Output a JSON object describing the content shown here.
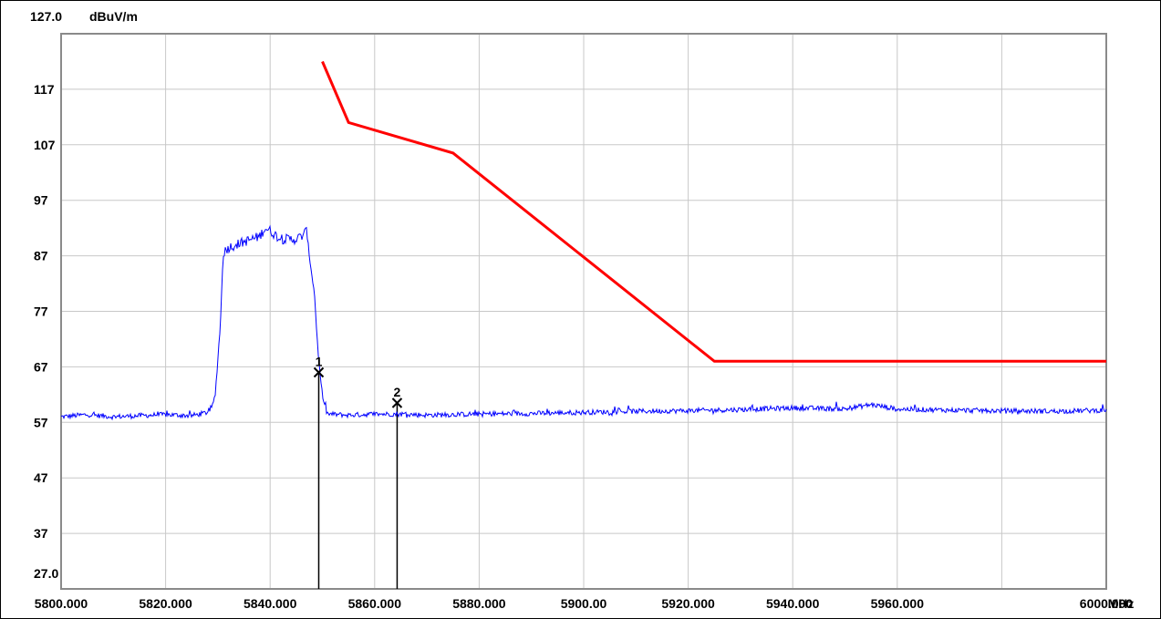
{
  "chart_data": {
    "type": "line",
    "y_unit": "dBuV/m",
    "x_unit": "MHz",
    "y_top_label": "127.0",
    "y_bottom_label": "27.0",
    "ylim": [
      27.0,
      127.0
    ],
    "xlim": [
      5800.0,
      6000.0
    ],
    "grid": true,
    "y_ticks": [
      117,
      107,
      97,
      87,
      77,
      67,
      57,
      47,
      37
    ],
    "x_tick_labels": [
      {
        "value": 5800,
        "label": "5800.000"
      },
      {
        "value": 5820,
        "label": "5820.000"
      },
      {
        "value": 5840,
        "label": "5840.000"
      },
      {
        "value": 5860,
        "label": "5860.000"
      },
      {
        "value": 5880,
        "label": "5880.000"
      },
      {
        "value": 5900,
        "label": "5900.00"
      },
      {
        "value": 5920,
        "label": "5920.000"
      },
      {
        "value": 5940,
        "label": "5940.000"
      },
      {
        "value": 5960,
        "label": "5960.000"
      },
      {
        "value": 6000,
        "label": "6000.000"
      }
    ],
    "limit_line": {
      "color": "#ff0000",
      "x": [
        5850.0,
        5855.0,
        5875.0,
        5925.0,
        6000.0
      ],
      "y": [
        122.0,
        111.0,
        105.5,
        68.0,
        68.0
      ]
    },
    "trace": {
      "color": "#0000ff",
      "x": [
        5800,
        5805,
        5810,
        5815,
        5820,
        5825,
        5828,
        5829,
        5829.5,
        5830.5,
        5831,
        5832,
        5835,
        5838,
        5839,
        5840,
        5842,
        5845,
        5846,
        5847,
        5847.5,
        5848.5,
        5849,
        5849.5,
        5850,
        5850.5,
        5851,
        5855,
        5860,
        5865,
        5870,
        5880,
        5890,
        5900,
        5910,
        5920,
        5930,
        5940,
        5950,
        5955,
        5960,
        5970,
        5980,
        5990,
        6000
      ],
      "y": [
        58,
        58.4,
        58,
        58.2,
        58.4,
        58.2,
        58.8,
        60,
        62,
        75,
        87.5,
        88.5,
        89.5,
        90.5,
        92,
        91.5,
        90,
        90,
        90.5,
        91.5,
        87,
        80,
        72,
        66,
        62,
        59.5,
        58.5,
        58.3,
        58.5,
        58.5,
        58.3,
        58.5,
        58.6,
        58.8,
        59.0,
        59.1,
        59.3,
        59.6,
        59.4,
        60.2,
        59.4,
        59.2,
        59.1,
        59.0,
        59.2
      ]
    },
    "markers": [
      {
        "label": "1",
        "x": 5849.3,
        "y": 66.0
      },
      {
        "label": "2",
        "x": 5864.3,
        "y": 60.5
      }
    ]
  }
}
